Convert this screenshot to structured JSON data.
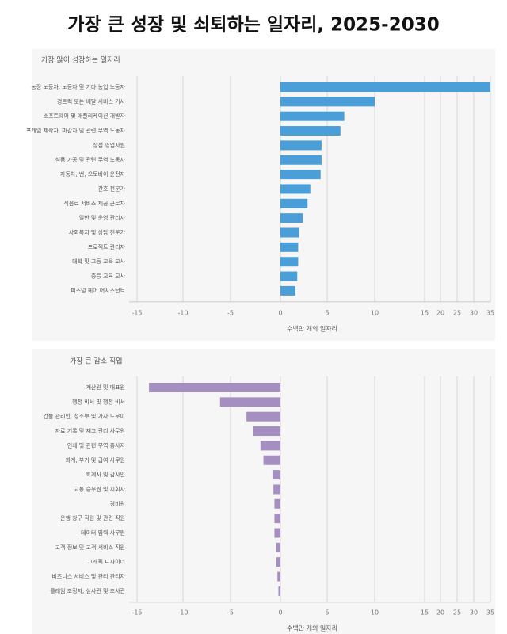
{
  "title": "가장 큰 성장 및 쇠퇴하는 일자리, 2025-2030",
  "chart_data": [
    {
      "type": "barh",
      "title": "가장 많이 성장하는 일자리",
      "xlabel": "수백만 개의 일자리",
      "color": "#4a9fd8",
      "categories": [
        "농장 노동자, 노동자 및 기타 농업 노동자",
        "경트럭 또는 배달 서비스 기사",
        "소프트웨어 및 애플리케이션 개발자",
        "프레임 제작자, 마감자 및 관련 무역 노동자",
        "상점 영업사원",
        "식품 가공 및 관련 무역 노동자",
        "자동차, 밴, 오토바이 운전자",
        "간호 전문가",
        "식음료 서비스 제공 근로자",
        "일반 및 운영 관리자",
        "사회복지 및 상담 전문가",
        "프로젝트 관리자",
        "대학 및 고등 교육 교사",
        "중등 교육 교사",
        "퍼스널 케어 어시스턴트"
      ],
      "values": [
        35,
        10,
        6.8,
        6.4,
        4.4,
        4.4,
        4.3,
        3.2,
        2.9,
        2.4,
        2.0,
        1.9,
        1.9,
        1.8,
        1.6
      ],
      "xlim": [
        -15,
        35
      ],
      "xticks": [
        -15,
        -10,
        -5,
        0,
        5,
        10,
        15,
        20,
        25,
        30,
        35
      ],
      "grid": true
    },
    {
      "type": "barh",
      "title": "가장 큰 감소 직업",
      "xlabel": "수백만 개의 일자리",
      "color": "#a48fc0",
      "categories": [
        "계산원 및 매표원",
        "행정 비서 및 행정 비서",
        "건물 관리인, 청소부 및 가사 도우미",
        "자료 기록 및 재고 관리 사무원",
        "인쇄 및 관련 무역 종사자",
        "회계, 부기 및 급여 사무원",
        "회계사 및 감사인",
        "교통 승무원 및 지휘자",
        "경비원",
        "은행 창구 직원 및 관련 직원",
        "데이터 입력 사무원",
        "고객 정보 및 고객 서비스 직원",
        "그래픽 디자이너",
        "비즈니스 서비스 및 관리 관리자",
        "클레임 조정자, 심사관 및 조사관"
      ],
      "values": [
        -13.7,
        -6.1,
        -3.4,
        -2.7,
        -2.0,
        -1.7,
        -0.8,
        -0.7,
        -0.6,
        -0.6,
        -0.6,
        -0.4,
        -0.4,
        -0.3,
        -0.2
      ],
      "xlim": [
        -15,
        35
      ],
      "xticks": [
        -15,
        -10,
        -5,
        0,
        5,
        10,
        15,
        20,
        25,
        30,
        35
      ],
      "grid": true
    }
  ]
}
